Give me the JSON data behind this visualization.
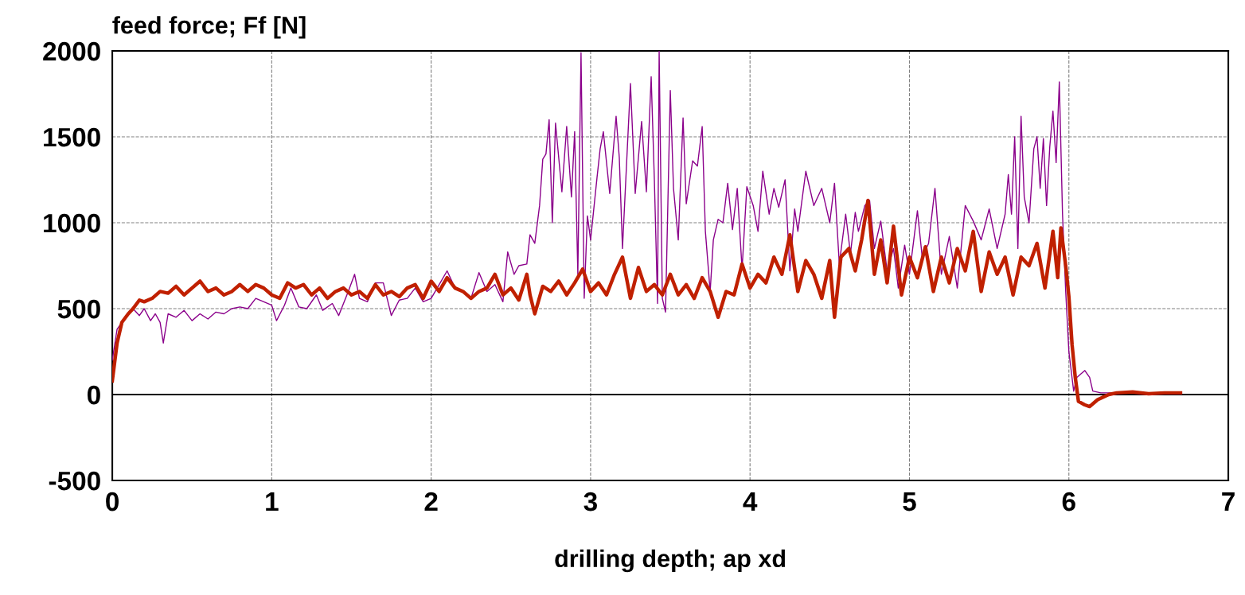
{
  "chart_data": {
    "type": "line",
    "xlabel": "drilling depth; ap xd",
    "ylabel": "feed force; Ff [N]",
    "xlim": [
      0,
      7
    ],
    "xticks": [
      0,
      1,
      2,
      3,
      4,
      5,
      6,
      7
    ],
    "ylim": [
      -500,
      2000
    ],
    "yticks": [
      -500,
      0,
      500,
      1000,
      1500,
      2000
    ],
    "grid": true,
    "line_style": "solid",
    "marker": "none",
    "ref_lines": [
      {
        "axis": "y",
        "value": 0,
        "color": "#000000"
      }
    ],
    "series": [
      {
        "color": "#8b008b",
        "x": [
          0,
          0.03,
          0.06,
          0.1,
          0.13,
          0.17,
          0.2,
          0.24,
          0.27,
          0.3,
          0.32,
          0.35,
          0.4,
          0.45,
          0.5,
          0.55,
          0.6,
          0.65,
          0.7,
          0.75,
          0.8,
          0.85,
          0.9,
          0.95,
          1.0,
          1.03,
          1.08,
          1.12,
          1.17,
          1.22,
          1.28,
          1.32,
          1.38,
          1.42,
          1.48,
          1.52,
          1.55,
          1.6,
          1.65,
          1.7,
          1.75,
          1.8,
          1.85,
          1.9,
          1.95,
          2.0,
          2.05,
          2.1,
          2.15,
          2.2,
          2.25,
          2.3,
          2.35,
          2.4,
          2.45,
          2.48,
          2.52,
          2.55,
          2.6,
          2.62,
          2.65,
          2.68,
          2.7,
          2.72,
          2.74,
          2.76,
          2.78,
          2.82,
          2.85,
          2.88,
          2.9,
          2.92,
          2.94,
          2.96,
          2.98,
          3.0,
          3.04,
          3.06,
          3.08,
          3.12,
          3.16,
          3.18,
          3.2,
          3.25,
          3.28,
          3.32,
          3.35,
          3.38,
          3.4,
          3.42,
          3.43,
          3.45,
          3.47,
          3.5,
          3.52,
          3.55,
          3.58,
          3.6,
          3.64,
          3.67,
          3.7,
          3.72,
          3.75,
          3.77,
          3.8,
          3.83,
          3.86,
          3.89,
          3.92,
          3.95,
          3.98,
          4.02,
          4.05,
          4.08,
          4.12,
          4.15,
          4.18,
          4.22,
          4.25,
          4.28,
          4.3,
          4.35,
          4.4,
          4.45,
          4.5,
          4.53,
          4.56,
          4.6,
          4.63,
          4.66,
          4.68,
          4.72,
          4.75,
          4.78,
          4.82,
          4.86,
          4.9,
          4.93,
          4.97,
          5.0,
          5.05,
          5.08,
          5.12,
          5.16,
          5.2,
          5.25,
          5.3,
          5.35,
          5.4,
          5.45,
          5.5,
          5.55,
          5.6,
          5.62,
          5.64,
          5.66,
          5.68,
          5.7,
          5.72,
          5.75,
          5.78,
          5.8,
          5.82,
          5.84,
          5.86,
          5.88,
          5.9,
          5.92,
          5.94,
          5.96,
          5.98,
          6.0,
          6.03,
          6.05,
          6.1,
          6.13,
          6.15,
          6.2,
          6.3,
          6.5,
          6.7
        ],
        "values": [
          200,
          380,
          420,
          470,
          500,
          460,
          500,
          430,
          470,
          420,
          300,
          470,
          450,
          490,
          430,
          470,
          440,
          480,
          470,
          500,
          510,
          500,
          560,
          540,
          520,
          430,
          520,
          620,
          510,
          500,
          580,
          490,
          530,
          460,
          600,
          700,
          560,
          540,
          650,
          650,
          460,
          550,
          560,
          620,
          540,
          560,
          640,
          720,
          620,
          600,
          560,
          710,
          600,
          640,
          540,
          830,
          700,
          750,
          760,
          930,
          880,
          1100,
          1370,
          1400,
          1600,
          1000,
          1580,
          1180,
          1560,
          1150,
          1530,
          700,
          1990,
          560,
          1040,
          900,
          1260,
          1430,
          1530,
          1170,
          1620,
          1380,
          850,
          1810,
          1170,
          1590,
          1180,
          1850,
          1250,
          530,
          2000,
          560,
          480,
          1770,
          1200,
          900,
          1610,
          1110,
          1360,
          1330,
          1560,
          950,
          600,
          900,
          1020,
          1000,
          1230,
          960,
          1200,
          730,
          1210,
          1100,
          950,
          1300,
          1050,
          1200,
          1090,
          1250,
          720,
          1080,
          950,
          1300,
          1100,
          1200,
          1000,
          1230,
          760,
          1050,
          820,
          1060,
          950,
          1100,
          1130,
          850,
          1010,
          720,
          850,
          620,
          870,
          700,
          1070,
          800,
          880,
          1200,
          700,
          920,
          620,
          1100,
          1010,
          900,
          1080,
          850,
          1050,
          1280,
          1050,
          1500,
          850,
          1620,
          1150,
          1000,
          1430,
          1500,
          1200,
          1490,
          1100,
          1440,
          1650,
          1350,
          1820,
          1050,
          600,
          250,
          20,
          100,
          140,
          100,
          20,
          10,
          10,
          5,
          5
        ]
      },
      {
        "color": "#c02000",
        "x": [
          0,
          0.03,
          0.06,
          0.1,
          0.13,
          0.17,
          0.2,
          0.25,
          0.3,
          0.35,
          0.4,
          0.45,
          0.5,
          0.55,
          0.6,
          0.65,
          0.7,
          0.75,
          0.8,
          0.85,
          0.9,
          0.95,
          1.0,
          1.05,
          1.1,
          1.15,
          1.2,
          1.25,
          1.3,
          1.35,
          1.4,
          1.45,
          1.5,
          1.55,
          1.6,
          1.65,
          1.7,
          1.75,
          1.8,
          1.85,
          1.9,
          1.95,
          2.0,
          2.05,
          2.1,
          2.15,
          2.2,
          2.25,
          2.3,
          2.35,
          2.4,
          2.45,
          2.5,
          2.55,
          2.6,
          2.62,
          2.65,
          2.7,
          2.75,
          2.8,
          2.85,
          2.9,
          2.95,
          3.0,
          3.05,
          3.1,
          3.15,
          3.2,
          3.25,
          3.3,
          3.35,
          3.4,
          3.45,
          3.5,
          3.55,
          3.6,
          3.65,
          3.7,
          3.75,
          3.8,
          3.85,
          3.9,
          3.95,
          4.0,
          4.05,
          4.1,
          4.15,
          4.2,
          4.25,
          4.3,
          4.35,
          4.4,
          4.45,
          4.5,
          4.53,
          4.57,
          4.62,
          4.66,
          4.7,
          4.74,
          4.78,
          4.82,
          4.86,
          4.9,
          4.95,
          5.0,
          5.05,
          5.1,
          5.15,
          5.2,
          5.25,
          5.3,
          5.35,
          5.4,
          5.45,
          5.5,
          5.55,
          5.6,
          5.65,
          5.7,
          5.75,
          5.8,
          5.85,
          5.9,
          5.93,
          5.95,
          5.98,
          6.0,
          6.02,
          6.04,
          6.06,
          6.1,
          6.13,
          6.18,
          6.25,
          6.3,
          6.4,
          6.5,
          6.6,
          6.7
        ],
        "values": [
          80,
          300,
          420,
          470,
          500,
          550,
          540,
          560,
          600,
          590,
          630,
          580,
          620,
          660,
          600,
          620,
          580,
          600,
          640,
          600,
          640,
          620,
          580,
          560,
          650,
          620,
          640,
          580,
          620,
          560,
          600,
          620,
          580,
          600,
          560,
          640,
          580,
          600,
          570,
          620,
          640,
          560,
          660,
          600,
          680,
          620,
          600,
          560,
          600,
          620,
          700,
          580,
          620,
          550,
          700,
          580,
          470,
          630,
          600,
          660,
          580,
          650,
          730,
          600,
          650,
          580,
          700,
          800,
          560,
          740,
          600,
          640,
          580,
          700,
          580,
          640,
          560,
          680,
          600,
          450,
          600,
          580,
          760,
          620,
          700,
          650,
          800,
          700,
          930,
          600,
          780,
          700,
          560,
          780,
          450,
          800,
          850,
          720,
          900,
          1130,
          700,
          900,
          650,
          980,
          580,
          800,
          680,
          860,
          600,
          800,
          650,
          850,
          720,
          950,
          600,
          830,
          700,
          800,
          580,
          800,
          750,
          880,
          620,
          950,
          680,
          970,
          750,
          570,
          290,
          100,
          -40,
          -60,
          -70,
          -30,
          0,
          10,
          15,
          5,
          10,
          10
        ]
      }
    ]
  }
}
